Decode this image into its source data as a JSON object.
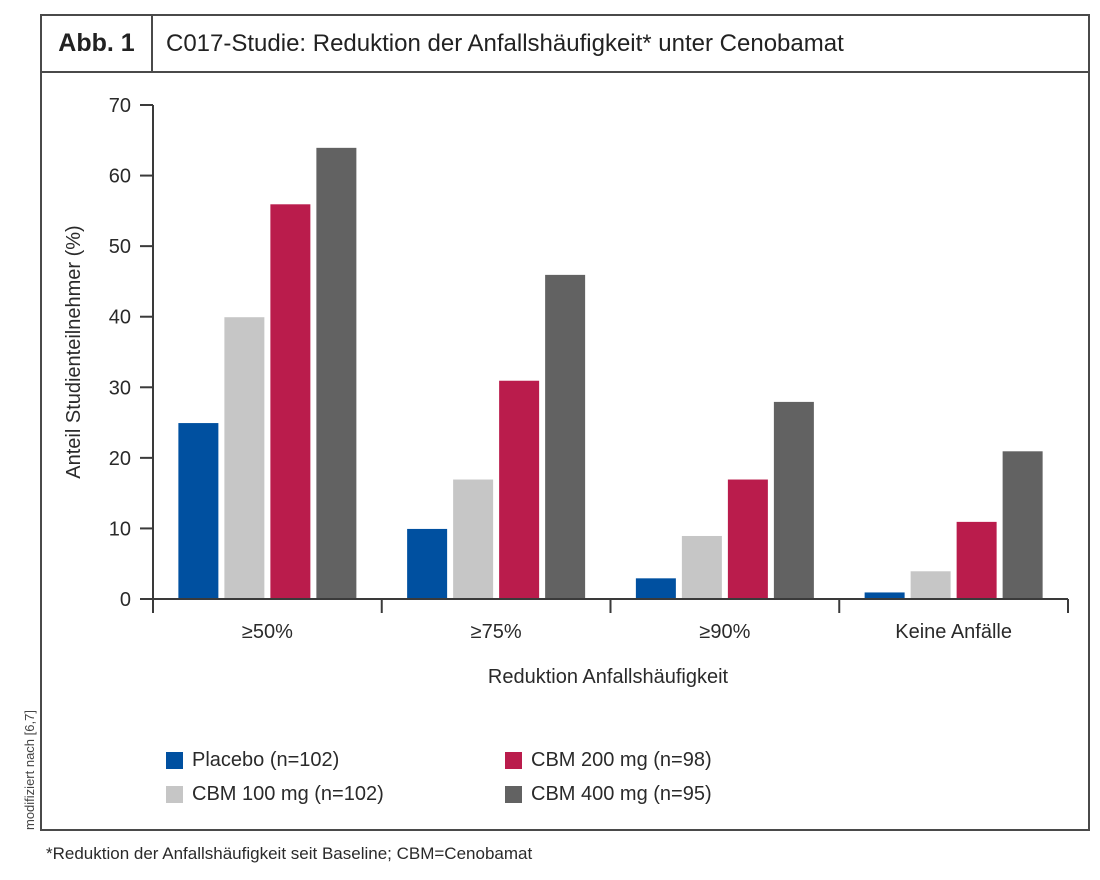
{
  "figure": {
    "tag": "Abb. 1",
    "title": "C017-Studie: Reduktion der Anfallshäufigkeit* unter Cenobamat",
    "side_note": "modifiziert nach [6,7]",
    "footnote": "*Reduktion der Anfallshäufigkeit seit Baseline; CBM=Cenobamat"
  },
  "chart_data": {
    "type": "bar",
    "title": "C017-Studie: Reduktion der Anfallshäufigkeit* unter Cenobamat",
    "xlabel": "Reduktion Anfallshäufigkeit",
    "ylabel": "Anteil Studienteilnehmer (%)",
    "ylim": [
      0,
      70
    ],
    "yticks": [
      0,
      10,
      20,
      30,
      40,
      50,
      60,
      70
    ],
    "grid": false,
    "legend_position": "bottom",
    "categories": [
      "≥50%",
      "≥75%",
      "≥90%",
      "Keine Anfälle"
    ],
    "series": [
      {
        "name": "Placebo (n=102)",
        "color": "#0050A0",
        "values": [
          25,
          10,
          3,
          1
        ]
      },
      {
        "name": "CBM 100 mg (n=102)",
        "color": "#C6C6C6",
        "values": [
          40,
          17,
          9,
          4
        ]
      },
      {
        "name": "CBM 200 mg (n=98)",
        "color": "#BA1C4C",
        "values": [
          56,
          31,
          17,
          11
        ]
      },
      {
        "name": "CBM 400 mg (n=95)",
        "color": "#626262",
        "values": [
          64,
          46,
          28,
          21
        ]
      }
    ]
  }
}
